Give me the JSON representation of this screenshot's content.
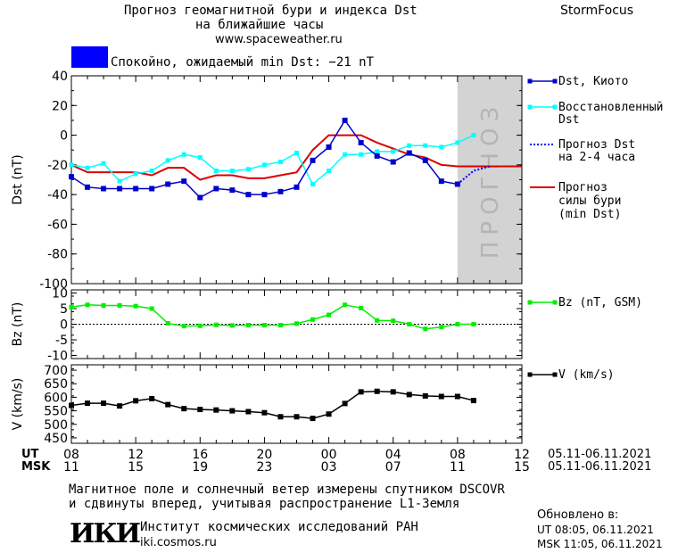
{
  "header": {
    "title_line1": "Прогноз геомагнитной бури и индекса Dst",
    "title_line2": "на ближайшие часы",
    "site": "www.spaceweather.ru",
    "brand": "StormFocus"
  },
  "status": {
    "text": "Спокойно, ожидаемый min Dst: −21 nT",
    "color": "#0000ff"
  },
  "forecast_label": "ПРОГНОЗ",
  "legend": {
    "dst_kyoto": "Dst, Киото",
    "dst_restored_1": "Восстановленный",
    "dst_restored_2": "Dst",
    "dst_forecast_1": "Прогноз Dst",
    "dst_forecast_2": "на 2-4 часа",
    "storm_forecast_1": "Прогноз",
    "storm_forecast_2": "силы бури",
    "storm_forecast_3": "(min Dst)",
    "bz": "Bz (nT, GSM)",
    "v": "V (km/s)"
  },
  "time_axis": {
    "ut_label": "UT",
    "msk_label": "MSK",
    "ut_ticks": [
      "08",
      "12",
      "16",
      "20",
      "00",
      "04",
      "08",
      "12"
    ],
    "msk_ticks": [
      "11",
      "15",
      "19",
      "23",
      "03",
      "07",
      "11",
      "15"
    ],
    "date_range_ut": "05.11-06.11.2021",
    "date_range_msk": "05.11-06.11.2021"
  },
  "footer": {
    "note_line1": "Магнитное поле и солнечный ветер измерены спутником DSCOVR",
    "note_line2": "и сдвинуты вперед, учитывая распространение L1-Земля",
    "logo": "ИКИ",
    "institute": "Институт космических исследований РАН",
    "institute_url": "iki.cosmos.ru",
    "updated_label": "Обновлено в:",
    "updated_ut": "UT  08:05, 06.11.2021",
    "updated_msk": "MSK 11:05, 06.11.2021"
  },
  "chart_data": [
    {
      "type": "line",
      "ylabel": "Dst (nT)",
      "ylim": [
        -100,
        40
      ],
      "yticks": [
        40,
        20,
        0,
        -20,
        -40,
        -60,
        -80,
        -100
      ],
      "x_range_hours": [
        0,
        28
      ],
      "forecast_region_hours": [
        24,
        28
      ],
      "colors": {
        "kyoto": "#0000cc",
        "restored": "#00ffff",
        "storm": "#dd0000",
        "forecast": "#0000ff",
        "shade": "#d3d3d3"
      },
      "series": [
        {
          "name": "Dst, Киото",
          "x": [
            0,
            1,
            2,
            3,
            4,
            5,
            6,
            7,
            8,
            9,
            10,
            11,
            12,
            13,
            14,
            15,
            16,
            17,
            18,
            19,
            20,
            21,
            22,
            23,
            24
          ],
          "y": [
            -28,
            -35,
            -36,
            -36,
            -36,
            -36,
            -33,
            -31,
            -42,
            -36,
            -37,
            -40,
            -40,
            -38,
            -35,
            -17,
            -8,
            10,
            -5,
            -14,
            -18,
            -12,
            -17,
            -31,
            -33
          ]
        },
        {
          "name": "Восстановленный Dst",
          "x": [
            0,
            1,
            2,
            3,
            4,
            5,
            6,
            7,
            8,
            9,
            10,
            11,
            12,
            13,
            14,
            15,
            16,
            17,
            18,
            19,
            20,
            21,
            22,
            23,
            24,
            25
          ],
          "y": [
            -20,
            -22,
            -19,
            -31,
            -26,
            -24,
            -17,
            -13,
            -15,
            -24,
            -24,
            -23,
            -20,
            -18,
            -12,
            -33,
            -24,
            -13,
            -13,
            -11,
            -11,
            -7,
            -7,
            -8,
            -5,
            0
          ]
        },
        {
          "name": "Прогноз Dst на 2-4 часа",
          "x": [
            24,
            25,
            26
          ],
          "y": [
            -33,
            -24,
            -21
          ]
        },
        {
          "name": "Прогноз силы бури (min Dst)",
          "x": [
            0,
            1,
            2,
            3,
            4,
            5,
            6,
            7,
            8,
            9,
            10,
            11,
            12,
            13,
            14,
            15,
            16,
            17,
            18,
            19,
            20,
            21,
            22,
            23,
            24,
            25,
            26,
            27,
            28
          ],
          "y": [
            -20,
            -25,
            -25,
            -25,
            -25,
            -27,
            -22,
            -22,
            -30,
            -27,
            -27,
            -29,
            -29,
            -27,
            -25,
            -10,
            0,
            0,
            0,
            -5,
            -9,
            -13,
            -15,
            -20,
            -21,
            -21,
            -21,
            -21,
            -21
          ]
        }
      ]
    },
    {
      "type": "line",
      "ylabel": "Bz (nT)",
      "ylim": [
        -11,
        11
      ],
      "yticks": [
        10,
        5,
        0,
        -5,
        -10
      ],
      "series": [
        {
          "name": "Bz (nT, GSM)",
          "x": [
            0,
            1,
            2,
            3,
            4,
            5,
            6,
            7,
            8,
            9,
            10,
            11,
            12,
            13,
            14,
            15,
            16,
            17,
            18,
            19,
            20,
            21,
            22,
            23,
            24,
            25
          ],
          "y": [
            5.5,
            6.2,
            6,
            6,
            5.8,
            5,
            0.3,
            -0.6,
            -0.5,
            -0.2,
            -0.4,
            -0.3,
            -0.3,
            -0.3,
            0.2,
            1.5,
            3,
            6.2,
            5.2,
            1.2,
            1.1,
            0,
            -1.5,
            -0.9,
            0,
            0
          ]
        }
      ],
      "color": "#00ee00"
    },
    {
      "type": "line",
      "ylabel": "V (km/s)",
      "ylim": [
        430,
        720
      ],
      "yticks": [
        700,
        650,
        600,
        550,
        500,
        450
      ],
      "series": [
        {
          "name": "V (km/s)",
          "x": [
            0,
            1,
            2,
            3,
            4,
            5,
            6,
            7,
            8,
            9,
            10,
            11,
            12,
            13,
            14,
            15,
            16,
            17,
            18,
            19,
            20,
            21,
            22,
            23,
            24,
            25
          ],
          "y": [
            570,
            578,
            578,
            568,
            587,
            595,
            573,
            558,
            555,
            553,
            550,
            547,
            543,
            528,
            528,
            522,
            538,
            577,
            620,
            622,
            620,
            610,
            605,
            603,
            603,
            588
          ]
        }
      ],
      "color": "#000000"
    }
  ]
}
